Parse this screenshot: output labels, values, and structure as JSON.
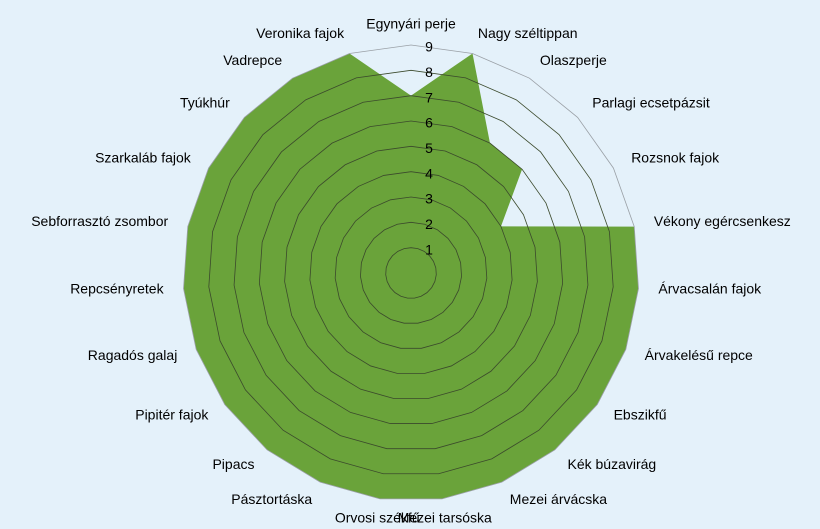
{
  "chart_data": {
    "type": "radar",
    "categories": [
      "Egynyári perje",
      "Nagy széltippan",
      "Olaszperje",
      "Parlagi ecsetpázsit",
      "Rozsnok fajok",
      "Vékony egércsenkesz",
      "Árvacsalán fajok",
      "Árvakelésű repce",
      "Ebszikfű",
      "Kék búzavirág",
      "Mezei árvácska",
      "Mezei tarsóska",
      "Orvosi székfű",
      "Pásztortáska",
      "Pipacs",
      "Pipitér fajok",
      "Ragadós galaj",
      "Repcsényretek",
      "Sebforrasztó zsombor",
      "Szarkaláb fajok",
      "Tyúkhúr",
      "Vadrepce",
      "Veronika fajok"
    ],
    "values": [
      7,
      9,
      6,
      6,
      4,
      9,
      9,
      9,
      9,
      9,
      9,
      9,
      9,
      9,
      9,
      9,
      9,
      9,
      9,
      9,
      9,
      9,
      9
    ],
    "color": "#6aa33a",
    "ylim": [
      0,
      9
    ],
    "yticks": [
      1,
      2,
      3,
      4,
      5,
      6,
      7,
      8,
      9
    ],
    "grid": true
  }
}
